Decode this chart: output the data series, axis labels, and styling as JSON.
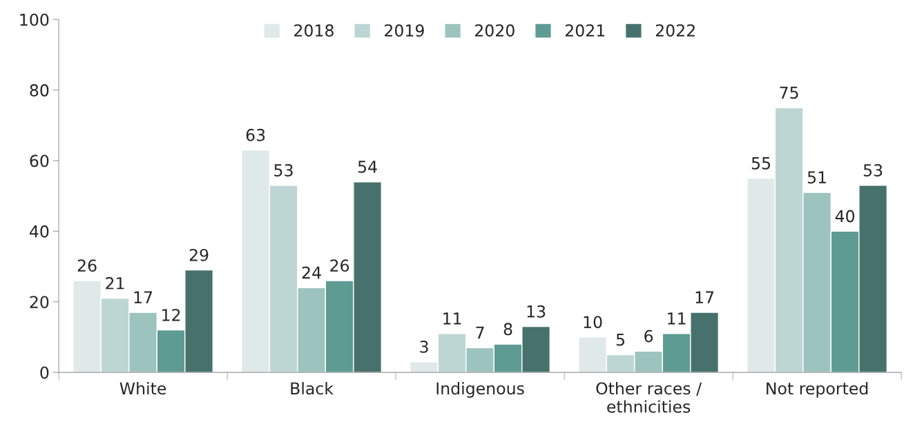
{
  "chart_data": {
    "type": "bar",
    "categories": [
      "White",
      "Black",
      "Indigenous",
      "Other races /\nethnicities",
      "Not reported"
    ],
    "series": [
      {
        "name": "2018",
        "color": "#dfe9e8",
        "values": [
          26,
          63,
          3,
          10,
          55
        ]
      },
      {
        "name": "2019",
        "color": "#bdd6d3",
        "values": [
          21,
          53,
          11,
          5,
          75
        ]
      },
      {
        "name": "2020",
        "color": "#9dc3bf",
        "values": [
          17,
          24,
          7,
          6,
          51
        ]
      },
      {
        "name": "2021",
        "color": "#5e9b93",
        "values": [
          12,
          26,
          8,
          11,
          40
        ]
      },
      {
        "name": "2022",
        "color": "#47716c",
        "values": [
          29,
          54,
          13,
          17,
          53
        ]
      }
    ],
    "ylim": [
      0,
      100
    ],
    "yticks": [
      0,
      20,
      40,
      60,
      80,
      100
    ],
    "grid": false,
    "legend": "top",
    "data_labels": true
  }
}
